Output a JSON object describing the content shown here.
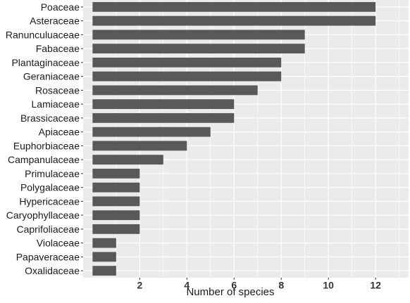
{
  "chart_data": {
    "type": "bar",
    "orientation": "horizontal",
    "categories": [
      "Poaceae",
      "Asteraceae",
      "Ranunculuaceae",
      "Fabaceae",
      "Plantaginaceae",
      "Geraniaceae",
      "Rosaceae",
      "Lamiaceae",
      "Brassicaceae",
      "Apiaceae",
      "Euphorbiaceae",
      "Campanulaceae",
      "Primulaceae",
      "Polygalaceae",
      "Hypericaceae",
      "Caryophyllaceae",
      "Caprifoliaceae",
      "Violaceae",
      "Papaveraceae",
      "Oxalidaceae"
    ],
    "values": [
      12,
      12,
      9,
      9,
      8,
      8,
      7,
      6,
      6,
      5,
      4,
      3,
      2,
      2,
      2,
      2,
      2,
      1,
      1,
      1
    ],
    "xlabel": "Number of species",
    "ylabel": "",
    "title": "",
    "xlim": [
      -0.4,
      13.4
    ],
    "xticks": [
      2,
      4,
      6,
      8,
      10,
      12
    ],
    "grid": true,
    "legend": "none",
    "colors": {
      "bar": "#595959",
      "panel": "#ebebeb",
      "grid": "#ffffff",
      "text": "#1a1a1a",
      "tick": "#333333"
    }
  }
}
